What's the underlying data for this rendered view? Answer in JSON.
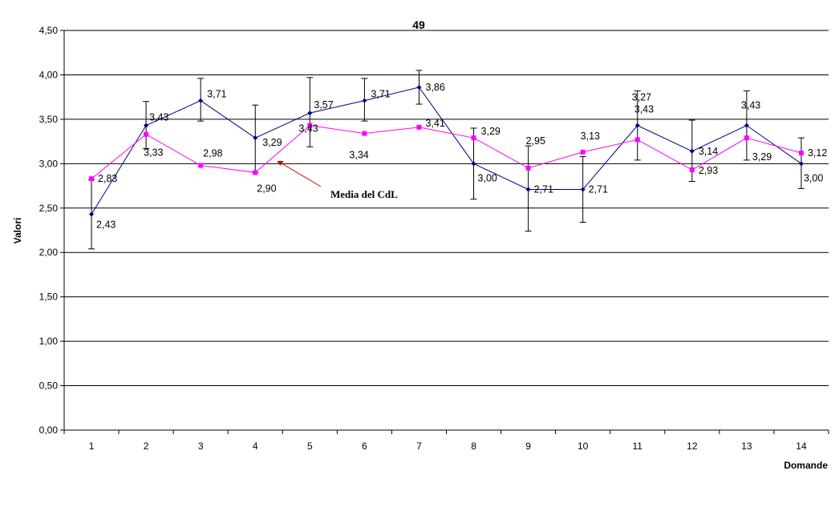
{
  "chart_data": {
    "type": "line",
    "title": "49",
    "xlabel": "Domande",
    "ylabel": "Valori",
    "ylim": [
      0,
      4.5
    ],
    "ytick_step": 0.5,
    "ytick_labels": [
      "0,00",
      "0,50",
      "1,00",
      "1,50",
      "2,00",
      "2,50",
      "3,00",
      "3,50",
      "4,00",
      "4,50"
    ],
    "categories": [
      "1",
      "2",
      "3",
      "4",
      "5",
      "6",
      "7",
      "8",
      "9",
      "10",
      "11",
      "12",
      "13",
      "14"
    ],
    "grid": true,
    "legend": "none",
    "series": [
      {
        "color": "#000080",
        "marker": "diamond",
        "values": [
          2.43,
          3.43,
          3.71,
          3.29,
          3.57,
          3.71,
          3.86,
          3.0,
          2.71,
          2.71,
          3.43,
          3.14,
          3.43,
          3.0
        ],
        "labels": [
          "2,43",
          "3,43",
          "3,71",
          "3,29",
          "3,57",
          "3,71",
          "3,86",
          "3,00",
          "2,71",
          "2,71",
          "3,43",
          "3,14",
          "3,43",
          "3,00"
        ],
        "error_low": [
          2.04,
          3.17,
          3.48,
          2.9,
          3.19,
          3.48,
          3.67,
          2.6,
          2.24,
          2.34,
          3.04,
          2.8,
          3.04,
          2.72
        ],
        "error_high": [
          2.82,
          3.7,
          3.96,
          3.66,
          3.97,
          3.96,
          4.05,
          3.4,
          3.2,
          3.08,
          3.82,
          3.49,
          3.82,
          3.29
        ]
      },
      {
        "color": "#ff00ff",
        "marker": "square",
        "values": [
          2.83,
          3.33,
          2.98,
          2.9,
          3.43,
          3.34,
          3.41,
          3.29,
          2.95,
          3.13,
          3.27,
          2.93,
          3.29,
          3.12
        ],
        "labels": [
          "2,83",
          "3,33",
          "2,98",
          "2,90",
          "3,43",
          "3,34",
          "3,41",
          "3,29",
          "2,95",
          "3,13",
          "3,27",
          "2,93",
          "3,29",
          "3,12"
        ]
      }
    ],
    "annotation": {
      "text": "Media del CdL",
      "arrow_color": "#cc0000",
      "points_to": {
        "category": "4.4",
        "value": 3.03
      }
    }
  }
}
